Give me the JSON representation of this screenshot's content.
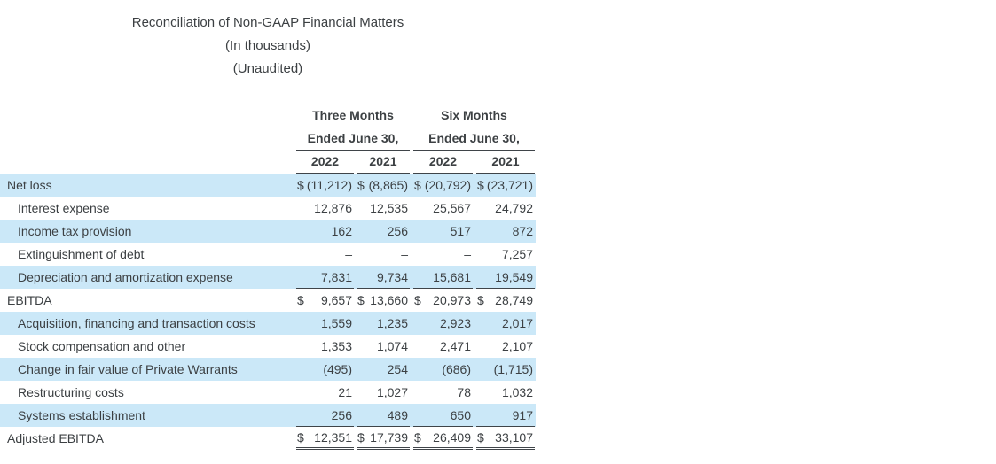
{
  "colors": {
    "highlight": "#cbe8f8",
    "text": "#3c4043",
    "rule": "#3f4449"
  },
  "document": {
    "title": "Reconciliation of Non-GAAP Financial Matters",
    "subtitle_units": "(In thousands)",
    "subtitle_audit": "(Unaudited)"
  },
  "table": {
    "column_groups": [
      {
        "line1": "Three Months",
        "line2": "Ended June 30,"
      },
      {
        "line1": "Six Months",
        "line2": "Ended June 30,"
      }
    ],
    "year_headers": [
      "2022",
      "2021",
      "2022",
      "2021"
    ],
    "rows": [
      {
        "label": "Net loss",
        "indent": false,
        "highlight": true,
        "rule_below": false,
        "double_rule_below": false,
        "cells": [
          {
            "d": "$",
            "v": "(11,212)"
          },
          {
            "d": "$",
            "v": "(8,865)"
          },
          {
            "d": "$",
            "v": "(20,792)"
          },
          {
            "d": "$",
            "v": "(23,721)"
          }
        ]
      },
      {
        "label": "Interest expense",
        "indent": true,
        "highlight": false,
        "rule_below": false,
        "double_rule_below": false,
        "cells": [
          {
            "d": "",
            "v": "12,876"
          },
          {
            "d": "",
            "v": "12,535"
          },
          {
            "d": "",
            "v": "25,567"
          },
          {
            "d": "",
            "v": "24,792"
          }
        ]
      },
      {
        "label": "Income tax provision",
        "indent": true,
        "highlight": true,
        "rule_below": false,
        "double_rule_below": false,
        "cells": [
          {
            "d": "",
            "v": "162"
          },
          {
            "d": "",
            "v": "256"
          },
          {
            "d": "",
            "v": "517"
          },
          {
            "d": "",
            "v": "872"
          }
        ]
      },
      {
        "label": "Extinguishment of debt",
        "indent": true,
        "highlight": false,
        "rule_below": false,
        "double_rule_below": false,
        "cells": [
          {
            "d": "",
            "v": "–"
          },
          {
            "d": "",
            "v": "–"
          },
          {
            "d": "",
            "v": "–"
          },
          {
            "d": "",
            "v": "7,257"
          }
        ]
      },
      {
        "label": "Depreciation and amortization expense",
        "indent": true,
        "highlight": true,
        "rule_below": true,
        "double_rule_below": false,
        "cells": [
          {
            "d": "",
            "v": "7,831"
          },
          {
            "d": "",
            "v": "9,734"
          },
          {
            "d": "",
            "v": "15,681"
          },
          {
            "d": "",
            "v": "19,549"
          }
        ]
      },
      {
        "label": "EBITDA",
        "indent": false,
        "highlight": false,
        "rule_below": false,
        "double_rule_below": false,
        "cells": [
          {
            "d": "$",
            "v": "9,657"
          },
          {
            "d": "$",
            "v": "13,660"
          },
          {
            "d": "$",
            "v": "20,973"
          },
          {
            "d": "$",
            "v": "28,749"
          }
        ]
      },
      {
        "label": "Acquisition, financing and transaction costs",
        "indent": true,
        "highlight": true,
        "rule_below": false,
        "double_rule_below": false,
        "cells": [
          {
            "d": "",
            "v": "1,559"
          },
          {
            "d": "",
            "v": "1,235"
          },
          {
            "d": "",
            "v": "2,923"
          },
          {
            "d": "",
            "v": "2,017"
          }
        ]
      },
      {
        "label": "Stock compensation and other",
        "indent": true,
        "highlight": false,
        "rule_below": false,
        "double_rule_below": false,
        "cells": [
          {
            "d": "",
            "v": "1,353"
          },
          {
            "d": "",
            "v": "1,074"
          },
          {
            "d": "",
            "v": "2,471"
          },
          {
            "d": "",
            "v": "2,107"
          }
        ]
      },
      {
        "label": "Change in fair value of Private Warrants",
        "indent": true,
        "highlight": true,
        "rule_below": false,
        "double_rule_below": false,
        "cells": [
          {
            "d": "",
            "v": "(495)"
          },
          {
            "d": "",
            "v": "254"
          },
          {
            "d": "",
            "v": "(686)"
          },
          {
            "d": "",
            "v": "(1,715)"
          }
        ]
      },
      {
        "label": "Restructuring costs",
        "indent": true,
        "highlight": false,
        "rule_below": false,
        "double_rule_below": false,
        "cells": [
          {
            "d": "",
            "v": "21"
          },
          {
            "d": "",
            "v": "1,027"
          },
          {
            "d": "",
            "v": "78"
          },
          {
            "d": "",
            "v": "1,032"
          }
        ]
      },
      {
        "label": "Systems establishment",
        "indent": true,
        "highlight": true,
        "rule_below": true,
        "double_rule_below": false,
        "cells": [
          {
            "d": "",
            "v": "256"
          },
          {
            "d": "",
            "v": "489"
          },
          {
            "d": "",
            "v": "650"
          },
          {
            "d": "",
            "v": "917"
          }
        ]
      },
      {
        "label": "Adjusted EBITDA",
        "indent": false,
        "highlight": false,
        "rule_below": false,
        "double_rule_below": true,
        "cells": [
          {
            "d": "$",
            "v": "12,351"
          },
          {
            "d": "$",
            "v": "17,739"
          },
          {
            "d": "$",
            "v": "26,409"
          },
          {
            "d": "$",
            "v": "33,107"
          }
        ]
      }
    ]
  }
}
